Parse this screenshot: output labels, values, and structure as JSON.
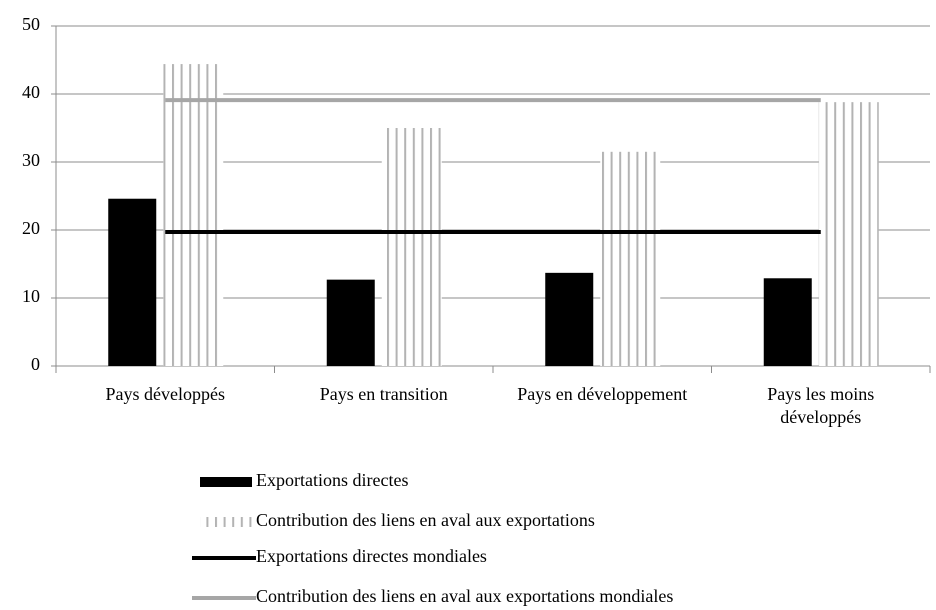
{
  "chart_data": {
    "type": "bar",
    "categories": [
      "Pays développés",
      "Pays en transition",
      "Pays en développement",
      "Pays les moins développés"
    ],
    "series": [
      {
        "name": "Exportations directes",
        "type": "bar",
        "color": "#000000",
        "values": [
          24.6,
          12.7,
          13.7,
          12.9
        ]
      },
      {
        "name": "Contribution des liens en aval aux exportations",
        "type": "bar",
        "color": "#b3b3b3",
        "fill": "vertical-lines",
        "values": [
          44.4,
          35,
          31.5,
          38.8
        ]
      },
      {
        "name": "Exportations directes mondiales",
        "type": "line",
        "color": "#000000",
        "values": [
          19.7,
          19.7,
          19.7,
          19.7
        ]
      },
      {
        "name": "Contribution des liens en aval aux exportations mondiales",
        "type": "line",
        "color": "#a6a6a6",
        "values": [
          39.1,
          39.1,
          39.1,
          39.1
        ]
      }
    ],
    "ylim": [
      0,
      50
    ],
    "yticks": [
      0,
      10,
      20,
      30,
      40,
      50
    ],
    "grid": true,
    "legend": "bottom"
  }
}
